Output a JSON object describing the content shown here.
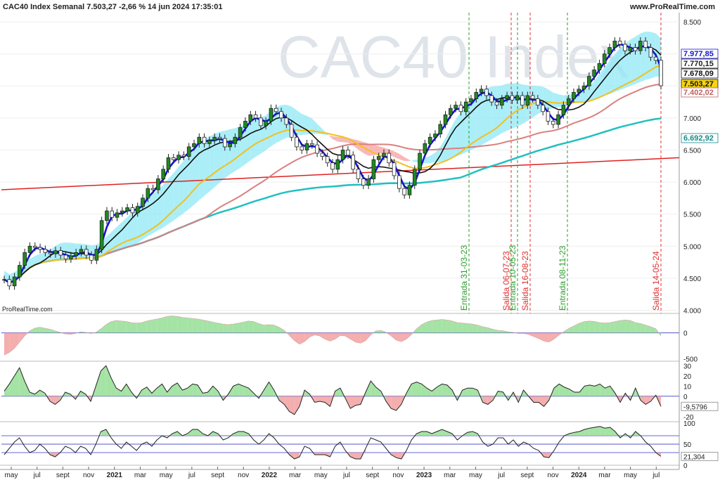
{
  "header": {
    "title": "CAC40 Index Semanal 7.503,27 -2,66 % 14 jun 2024 17:35:01",
    "site": "www.ProRealTime.com",
    "watermark": "CAC40 Index",
    "credit": "ProRealTime.com"
  },
  "colors": {
    "price_up": "#1f8a1f",
    "ma_blue": "#1414d6",
    "ma_black": "#111111",
    "ma_yellow": "#f2c01e",
    "ma_brown": "#d98080",
    "ma_cyan": "#20c0c0",
    "trend_red": "#e02020",
    "cloud_cyan": "#8fe8f5",
    "cloud_red": "#f5a0a0",
    "entry_green": "#2e9e2e",
    "exit_red": "#e03030"
  },
  "chart_data": [
    {
      "type": "candlestick",
      "title": "CAC40 Index Semanal",
      "ylim": [
        3950,
        8600
      ],
      "yticks": [
        "8.500",
        "8.000",
        "7.500",
        "7.000",
        "6.500",
        "6.000",
        "5.500",
        "5.000",
        "4.500",
        "4.000"
      ],
      "x_labels": [
        "may",
        "jul",
        "sept",
        "nov",
        "2021",
        "mar",
        "may",
        "jul",
        "sept",
        "nov",
        "2022",
        "mar",
        "may",
        "jul",
        "sept",
        "nov",
        "2023",
        "mar",
        "may",
        "jul",
        "sept",
        "nov",
        "2024",
        "mar",
        "may",
        "jul"
      ],
      "price_labels": {
        "ma_fast": "7.977,85",
        "ma_black": "7.770,15",
        "ma_yellow": "7.678,09",
        "last": "7.503,27",
        "ma_brown": "7.402,02",
        "ma_cyan": "6.692,92"
      },
      "close": [
        4480,
        4380,
        4520,
        4700,
        4900,
        5000,
        4980,
        4950,
        4900,
        4880,
        4930,
        4860,
        4800,
        4850,
        4900,
        4950,
        4860,
        4780,
        4950,
        5400,
        5550,
        5450,
        5520,
        5550,
        5600,
        5520,
        5620,
        5750,
        5900,
        5880,
        6050,
        6200,
        6380,
        6350,
        6420,
        6400,
        6550,
        6600,
        6700,
        6600,
        6650,
        6700,
        6680,
        6550,
        6600,
        6700,
        6850,
        6950,
        7050,
        7000,
        6880,
        6950,
        7150,
        7100,
        7000,
        6900,
        6700,
        6550,
        6500,
        6600,
        6580,
        6450,
        6400,
        6300,
        6200,
        6350,
        6500,
        6420,
        6200,
        6050,
        5950,
        6050,
        6350,
        6400,
        6450,
        6300,
        6100,
        5900,
        5800,
        5950,
        6200,
        6450,
        6600,
        6700,
        6750,
        6900,
        7050,
        7150,
        7200,
        7100,
        7250,
        7300,
        7400,
        7450,
        7350,
        7250,
        7200,
        7300,
        7350,
        7280,
        7350,
        7200,
        7350,
        7300,
        7200,
        7100,
        6950,
        6900,
        7050,
        7200,
        7300,
        7400,
        7450,
        7500,
        7650,
        7750,
        7850,
        8000,
        8100,
        8200,
        8150,
        8050,
        8100,
        8050,
        8200,
        8100,
        7950,
        7900,
        7503
      ],
      "lines": {
        "trend_red": {
          "label": "",
          "start": 5880,
          "end": 6380
        },
        "entries": [
          "Entrada 31-03-23",
          "Entrada 10-05-23",
          "Entrada 08-11-23"
        ],
        "exits": [
          "Salida 06-07-23",
          "Salida 16-08-23",
          "Salida 14-05-24"
        ]
      }
    },
    {
      "type": "area",
      "panel": "oscillator_1",
      "yticks": [
        "0",
        "-500"
      ],
      "ylim": [
        -550,
        350
      ],
      "values": [
        -430,
        -380,
        -300,
        -180,
        -60,
        40,
        90,
        110,
        90,
        70,
        40,
        10,
        -20,
        -30,
        -10,
        20,
        10,
        -10,
        10,
        80,
        160,
        220,
        240,
        230,
        220,
        200,
        190,
        200,
        230,
        250,
        270,
        290,
        320,
        330,
        320,
        300,
        290,
        280,
        270,
        250,
        230,
        210,
        190,
        170,
        160,
        170,
        190,
        210,
        230,
        220,
        180,
        150,
        160,
        150,
        110,
        50,
        -50,
        -150,
        -220,
        -170,
        -80,
        -40,
        -60,
        -120,
        -160,
        -120,
        -50,
        -60,
        -120,
        -180,
        -200,
        -150,
        -40,
        40,
        50,
        10,
        -60,
        -140,
        -170,
        -120,
        -30,
        80,
        160,
        210,
        240,
        250,
        260,
        250,
        230,
        200,
        190,
        180,
        170,
        150,
        120,
        100,
        70,
        50,
        40,
        20,
        10,
        -10,
        -10,
        -30,
        -70,
        -110,
        -160,
        -180,
        -120,
        -40,
        30,
        90,
        140,
        190,
        220,
        230,
        220,
        200,
        190,
        200,
        220,
        240,
        250,
        240,
        200,
        180,
        150,
        120,
        80,
        -60
      ]
    },
    {
      "type": "area",
      "panel": "oscillator_2",
      "yticks": [
        "30",
        "20",
        "10",
        "0",
        "-10",
        "-20"
      ],
      "ylim": [
        -25,
        33
      ],
      "last_value_label": "-9,5796",
      "values": [
        5,
        12,
        20,
        28,
        15,
        4,
        2,
        6,
        3,
        -5,
        -8,
        -4,
        4,
        2,
        -3,
        5,
        2,
        -5,
        10,
        25,
        30,
        18,
        8,
        5,
        12,
        4,
        -2,
        6,
        9,
        3,
        8,
        12,
        4,
        10,
        13,
        6,
        8,
        12,
        11,
        3,
        4,
        10,
        5,
        -4,
        2,
        10,
        12,
        10,
        8,
        3,
        -2,
        6,
        14,
        6,
        -4,
        -8,
        -15,
        -18,
        -10,
        6,
        2,
        -6,
        -5,
        -6,
        -10,
        5,
        8,
        -2,
        -12,
        -9,
        -8,
        4,
        15,
        9,
        5,
        -5,
        -12,
        -14,
        -8,
        3,
        12,
        14,
        12,
        8,
        5,
        9,
        12,
        11,
        6,
        -4,
        6,
        8,
        8,
        6,
        -6,
        -8,
        -4,
        5,
        4,
        -4,
        4,
        -6,
        6,
        0,
        -6,
        -6,
        -10,
        -4,
        8,
        12,
        9,
        7,
        4,
        4,
        10,
        11,
        10,
        12,
        8,
        10,
        3,
        -6,
        3,
        -4,
        8,
        -4,
        -8,
        -5,
        1,
        -10
      ]
    },
    {
      "type": "area",
      "panel": "oscillator_3",
      "yticks": [
        "100",
        "50",
        "0"
      ],
      "ylim": [
        0,
        100
      ],
      "upper_band": 70,
      "lower_band": 30,
      "last_value_label": "21,304",
      "values": [
        25,
        40,
        55,
        65,
        45,
        30,
        35,
        50,
        40,
        25,
        20,
        30,
        45,
        40,
        30,
        45,
        40,
        25,
        50,
        80,
        85,
        65,
        50,
        40,
        55,
        45,
        35,
        50,
        55,
        45,
        60,
        70,
        65,
        75,
        80,
        70,
        75,
        85,
        85,
        75,
        70,
        80,
        75,
        60,
        65,
        75,
        80,
        80,
        75,
        60,
        50,
        60,
        75,
        65,
        50,
        40,
        25,
        15,
        20,
        45,
        40,
        25,
        25,
        25,
        20,
        45,
        55,
        35,
        20,
        15,
        15,
        40,
        65,
        60,
        55,
        40,
        25,
        18,
        15,
        35,
        60,
        75,
        80,
        80,
        75,
        80,
        85,
        80,
        75,
        60,
        70,
        78,
        80,
        75,
        55,
        45,
        50,
        65,
        65,
        50,
        60,
        45,
        55,
        50,
        40,
        35,
        20,
        18,
        35,
        55,
        70,
        75,
        78,
        80,
        85,
        88,
        90,
        92,
        88,
        90,
        80,
        65,
        75,
        65,
        80,
        70,
        55,
        45,
        30,
        21
      ]
    }
  ]
}
